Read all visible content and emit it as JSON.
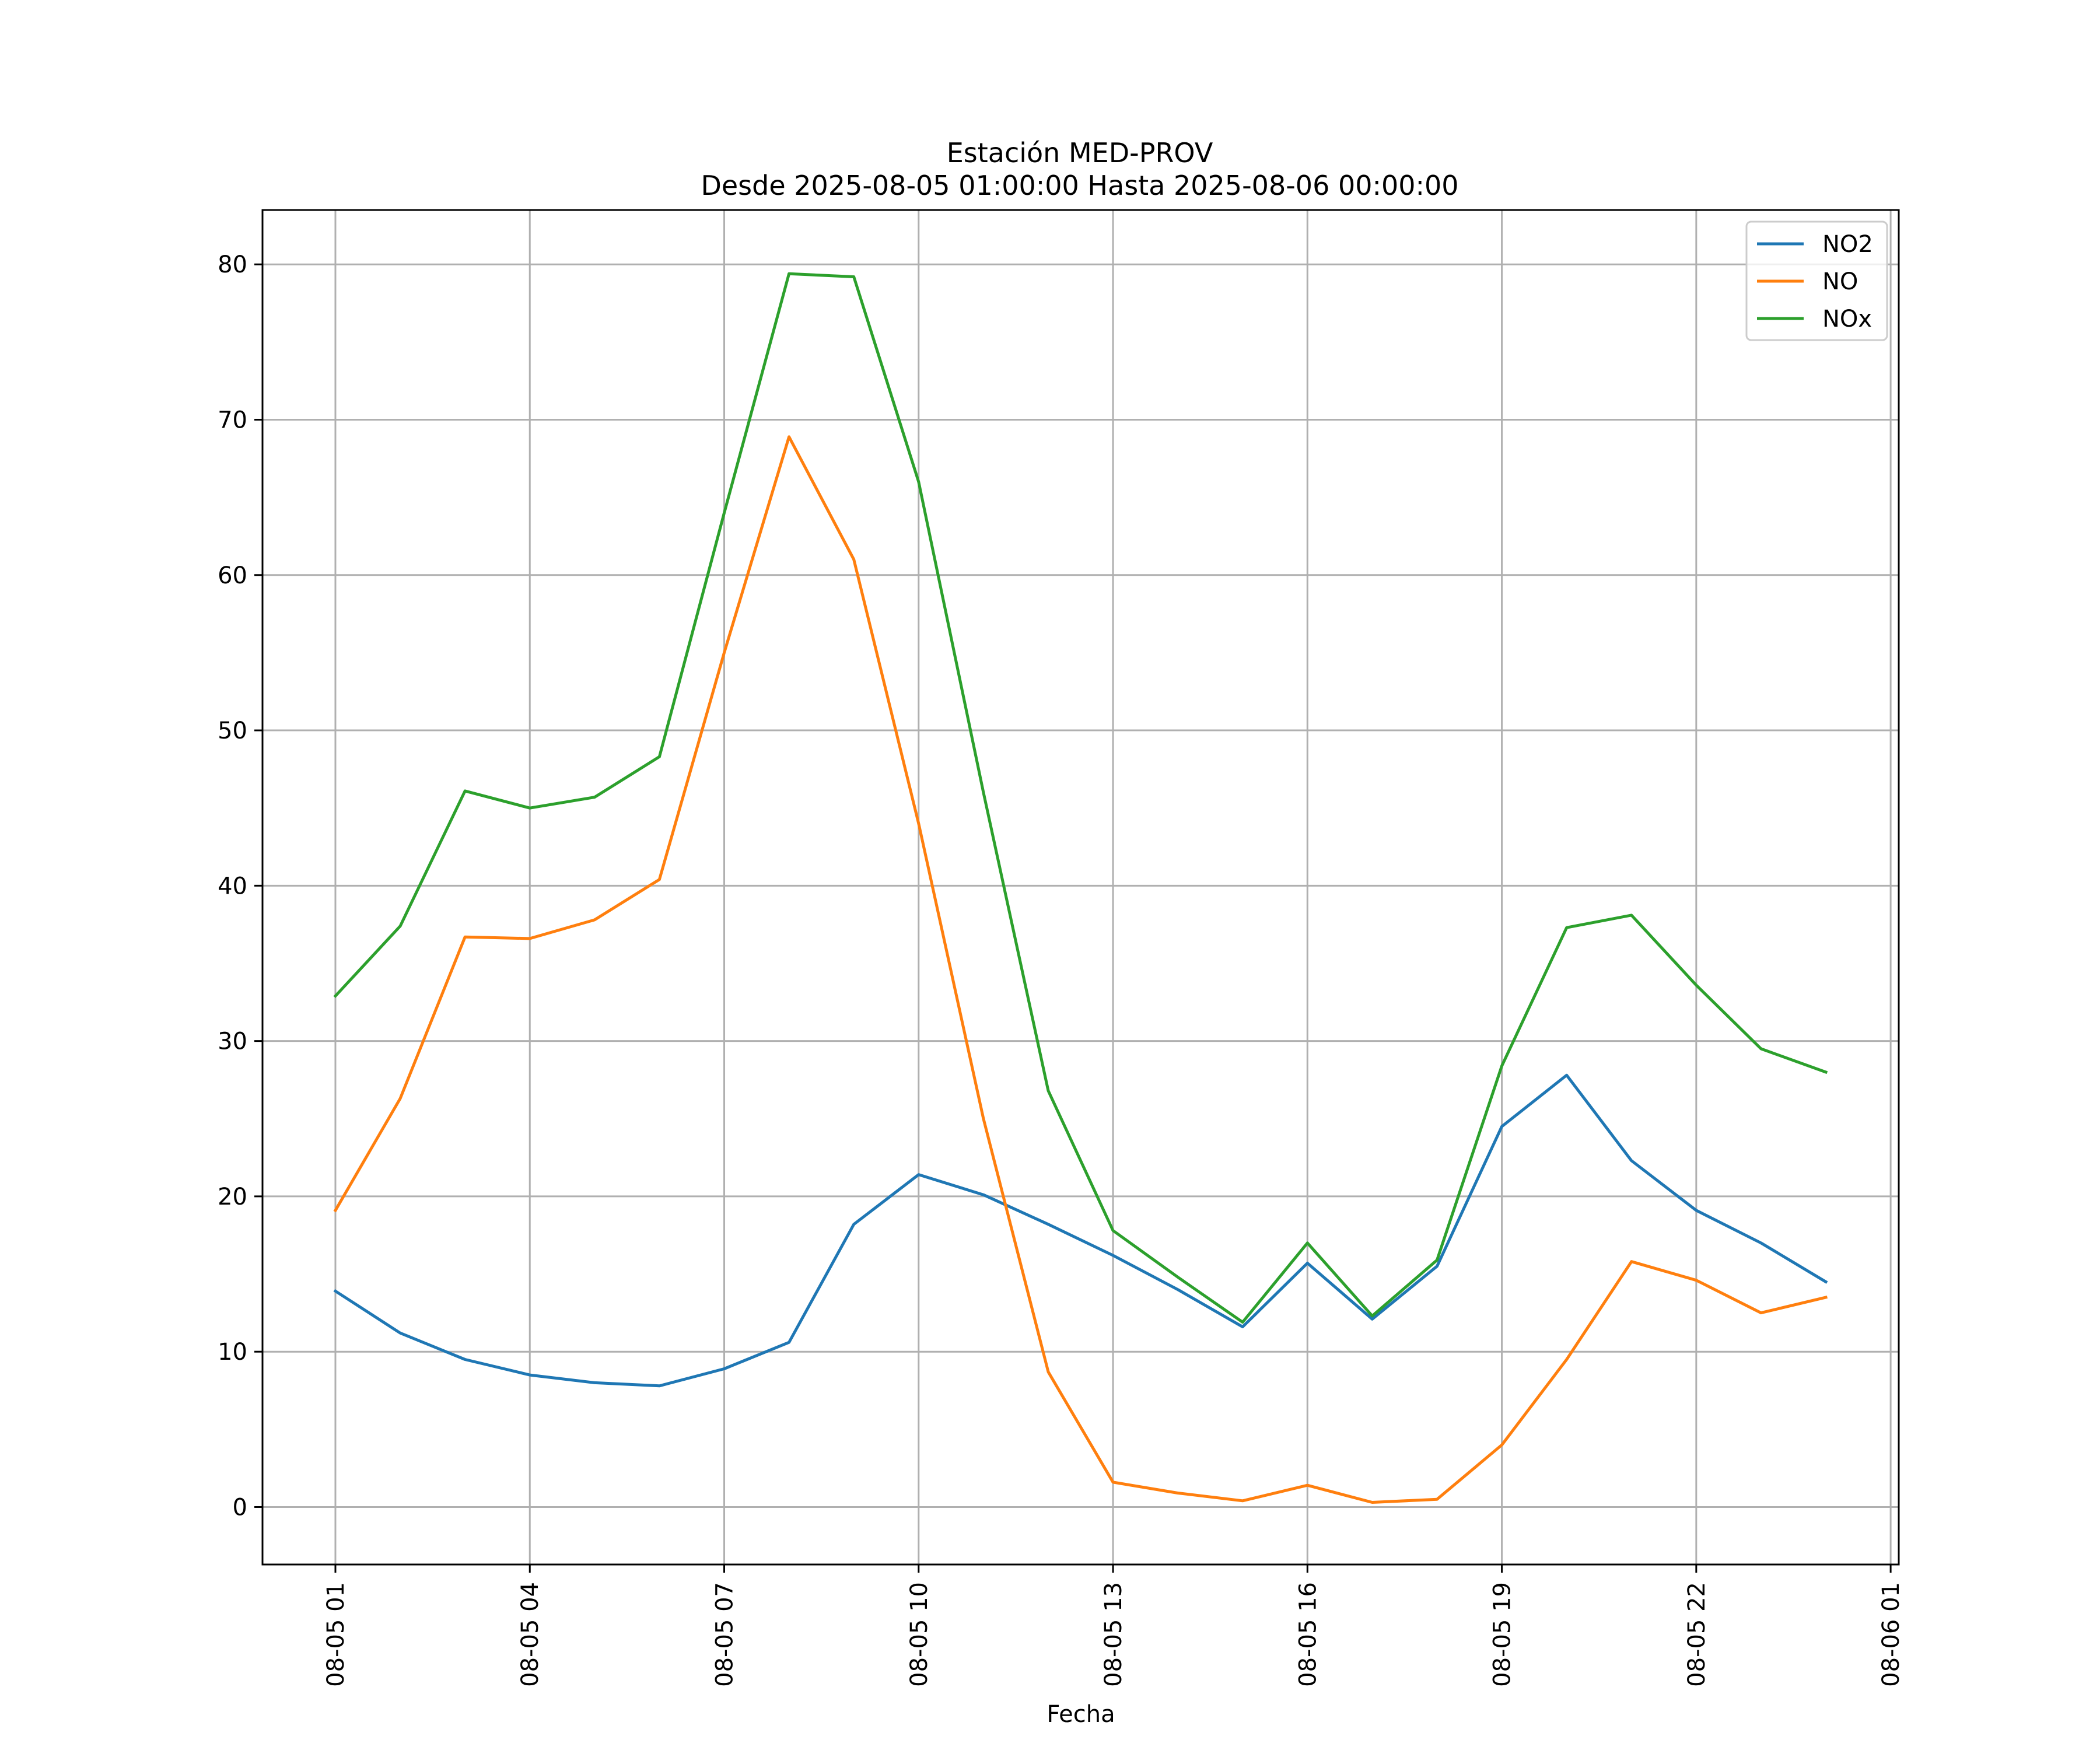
{
  "chart_data": {
    "type": "line",
    "title": "Estación MED-PROV",
    "subtitle": "Desde 2025-08-05 01:00:00 Hasta 2025-08-06 00:00:00",
    "xlabel": "Fecha",
    "ylabel": "",
    "x": [
      "08-05 01",
      "08-05 02",
      "08-05 03",
      "08-05 04",
      "08-05 05",
      "08-05 06",
      "08-05 07",
      "08-05 08",
      "08-05 09",
      "08-05 10",
      "08-05 11",
      "08-05 12",
      "08-05 13",
      "08-05 14",
      "08-05 15",
      "08-05 16",
      "08-05 17",
      "08-05 18",
      "08-05 19",
      "08-05 20",
      "08-05 21",
      "08-05 22",
      "08-05 23",
      "08-06 00"
    ],
    "x_hours": [
      1,
      2,
      3,
      4,
      5,
      6,
      7,
      8,
      9,
      10,
      11,
      12,
      13,
      14,
      15,
      16,
      17,
      18,
      19,
      20,
      21,
      22,
      23,
      24
    ],
    "xlim_hours": [
      -0.125,
      25.125
    ],
    "x_ticks": [
      {
        "hour": 1,
        "label": "08-05 01"
      },
      {
        "hour": 4,
        "label": "08-05 04"
      },
      {
        "hour": 7,
        "label": "08-05 07"
      },
      {
        "hour": 10,
        "label": "08-05 10"
      },
      {
        "hour": 13,
        "label": "08-05 13"
      },
      {
        "hour": 16,
        "label": "08-05 16"
      },
      {
        "hour": 19,
        "label": "08-05 19"
      },
      {
        "hour": 22,
        "label": "08-05 22"
      },
      {
        "hour": 25,
        "label": "08-06 01"
      }
    ],
    "ylim": [
      -3.7,
      83.5
    ],
    "y_ticks": [
      0,
      10,
      20,
      30,
      40,
      50,
      60,
      70,
      80
    ],
    "grid": true,
    "legend_position": "top-right",
    "series": [
      {
        "name": "NO2",
        "color": "#1f77b4",
        "values": [
          13.9,
          11.2,
          9.5,
          8.5,
          8.0,
          7.8,
          8.9,
          10.6,
          18.2,
          21.4,
          20.1,
          18.2,
          16.2,
          14.0,
          11.6,
          15.7,
          12.1,
          15.5,
          24.5,
          27.8,
          22.3,
          19.1,
          17.0,
          14.5
        ]
      },
      {
        "name": "NO",
        "color": "#ff7f0e",
        "values": [
          19.1,
          26.3,
          36.7,
          36.6,
          37.8,
          40.4,
          55.0,
          68.9,
          61.0,
          44.0,
          25.0,
          8.7,
          1.6,
          0.9,
          0.4,
          1.4,
          0.3,
          0.5,
          4.0,
          9.5,
          15.8,
          14.6,
          12.5,
          13.5
        ]
      },
      {
        "name": "NOx",
        "color": "#2ca02c",
        "values": [
          32.9,
          37.4,
          46.1,
          45.0,
          45.7,
          48.3,
          64.0,
          79.4,
          79.2,
          66.0,
          46.0,
          26.8,
          17.8,
          14.8,
          11.9,
          17.0,
          12.3,
          15.9,
          28.4,
          37.3,
          38.1,
          33.6,
          29.5,
          28.0
        ]
      }
    ]
  }
}
